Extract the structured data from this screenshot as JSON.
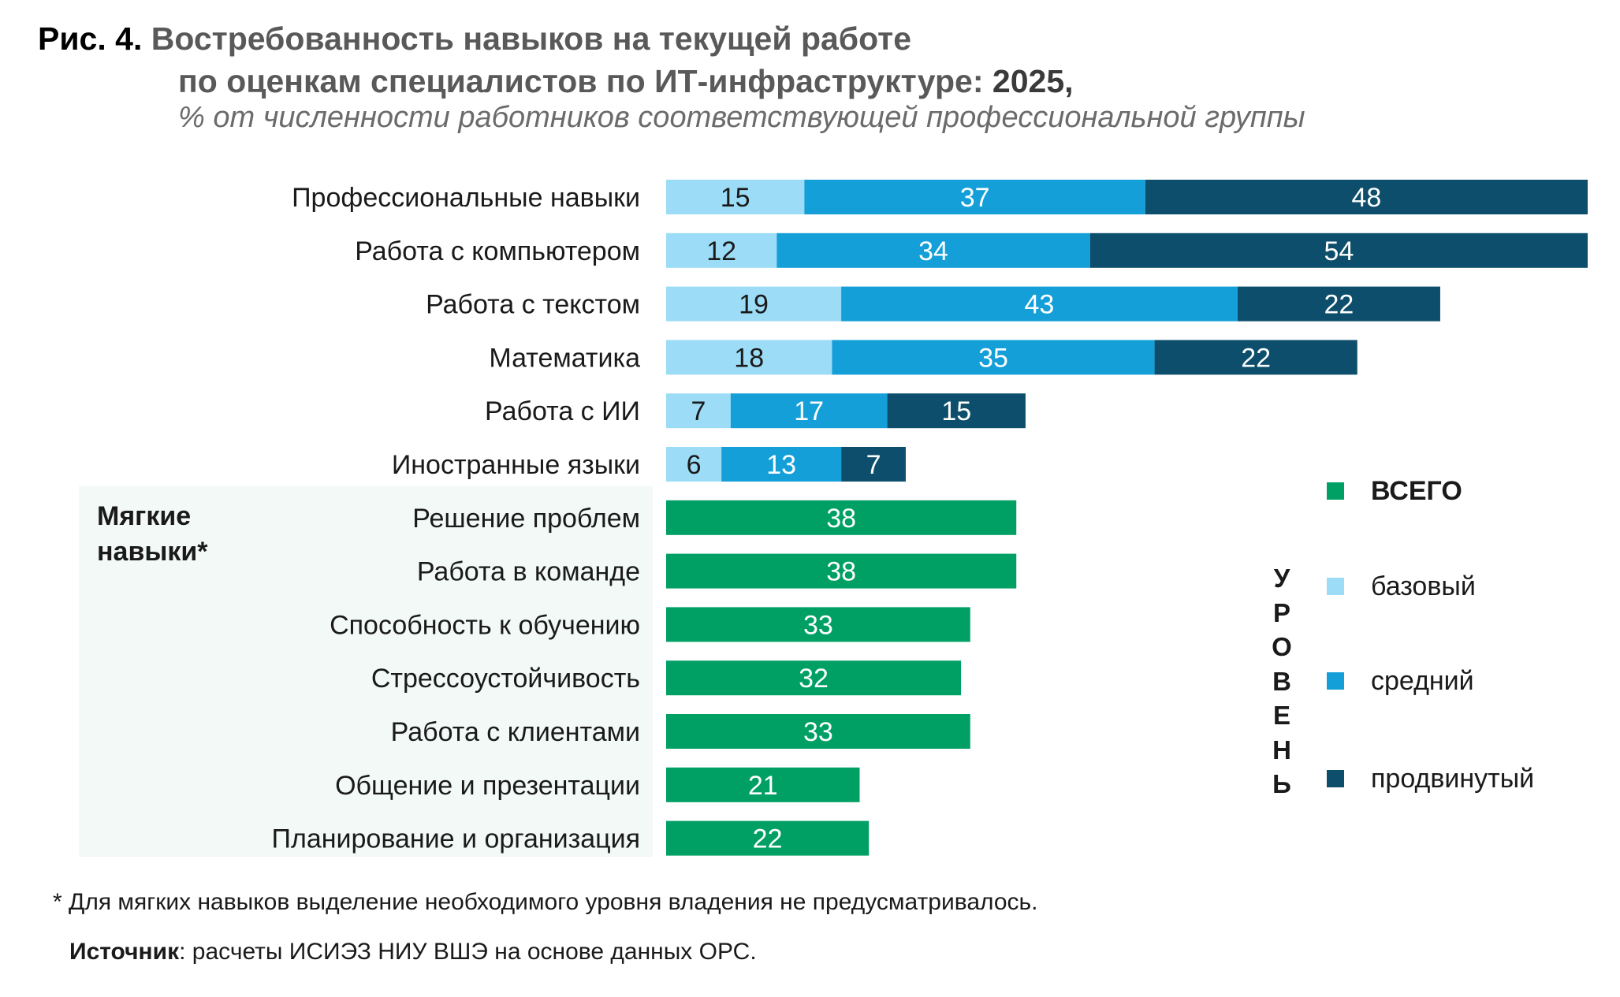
{
  "title": {
    "prefix": "Рис. 4.",
    "line1": "Востребованность навыков на текущей работе",
    "line2": "по оценкам специалистов по ИТ-инфраструктуре:",
    "year": "2025",
    "comma": ",",
    "subtitle": "% от численности работников соответствующей профессиональной группы"
  },
  "soft_skills_label_line1": "Мягкие",
  "soft_skills_label_line2": "навыки*",
  "legend": {
    "title_letters": [
      "У",
      "Р",
      "О",
      "В",
      "Е",
      "Н",
      "Ь"
    ],
    "items": [
      {
        "key": "total",
        "label": "ВСЕГО",
        "color": "#00a065",
        "bold": true
      },
      {
        "key": "basic",
        "label": "базовый",
        "color": "#9cdcf6",
        "bold": false
      },
      {
        "key": "medium",
        "label": "средний",
        "color": "#159fd8",
        "bold": false
      },
      {
        "key": "advanced",
        "label": "продвинутый",
        "color": "#0c4e6b",
        "bold": false
      }
    ]
  },
  "footnote": "* Для мягких навыков выделение необходимого уровня владения не предусматривалось.",
  "source": {
    "label": "Источник",
    "text": ": расчеты ИСИЭЗ НИУ ВШЭ на основе данных ОРС."
  },
  "chart_data": {
    "type": "bar",
    "orientation": "horizontal",
    "stacked": true,
    "categories": [
      "Профессиональные навыки",
      "Работа с компьютером",
      "Работа с текстом",
      "Математика",
      "Работа с ИИ",
      "Иностранные языки",
      "Решение проблем",
      "Работа в команде",
      "Способность к обучению",
      "Стрессоустойчивость",
      "Работа с клиентами",
      "Общение и презентации",
      "Планирование и организация"
    ],
    "series": [
      {
        "name": "базовый",
        "color": "#9cdcf6",
        "label_color": "#1a1a1a",
        "values": [
          15,
          12,
          19,
          18,
          7,
          6,
          null,
          null,
          null,
          null,
          null,
          null,
          null
        ]
      },
      {
        "name": "средний",
        "color": "#159fd8",
        "label_color": "#ffffff",
        "values": [
          37,
          34,
          43,
          35,
          17,
          13,
          null,
          null,
          null,
          null,
          null,
          null,
          null
        ]
      },
      {
        "name": "продвинутый",
        "color": "#0c4e6b",
        "label_color": "#ffffff",
        "values": [
          48,
          54,
          22,
          22,
          15,
          7,
          null,
          null,
          null,
          null,
          null,
          null,
          null
        ]
      },
      {
        "name": "ВСЕГО",
        "color": "#00a065",
        "label_color": "#ffffff",
        "values": [
          null,
          null,
          null,
          null,
          null,
          null,
          38,
          38,
          33,
          32,
          33,
          21,
          22
        ]
      }
    ],
    "xlim": [
      0,
      100
    ],
    "grid": false,
    "legend_position": "right"
  }
}
